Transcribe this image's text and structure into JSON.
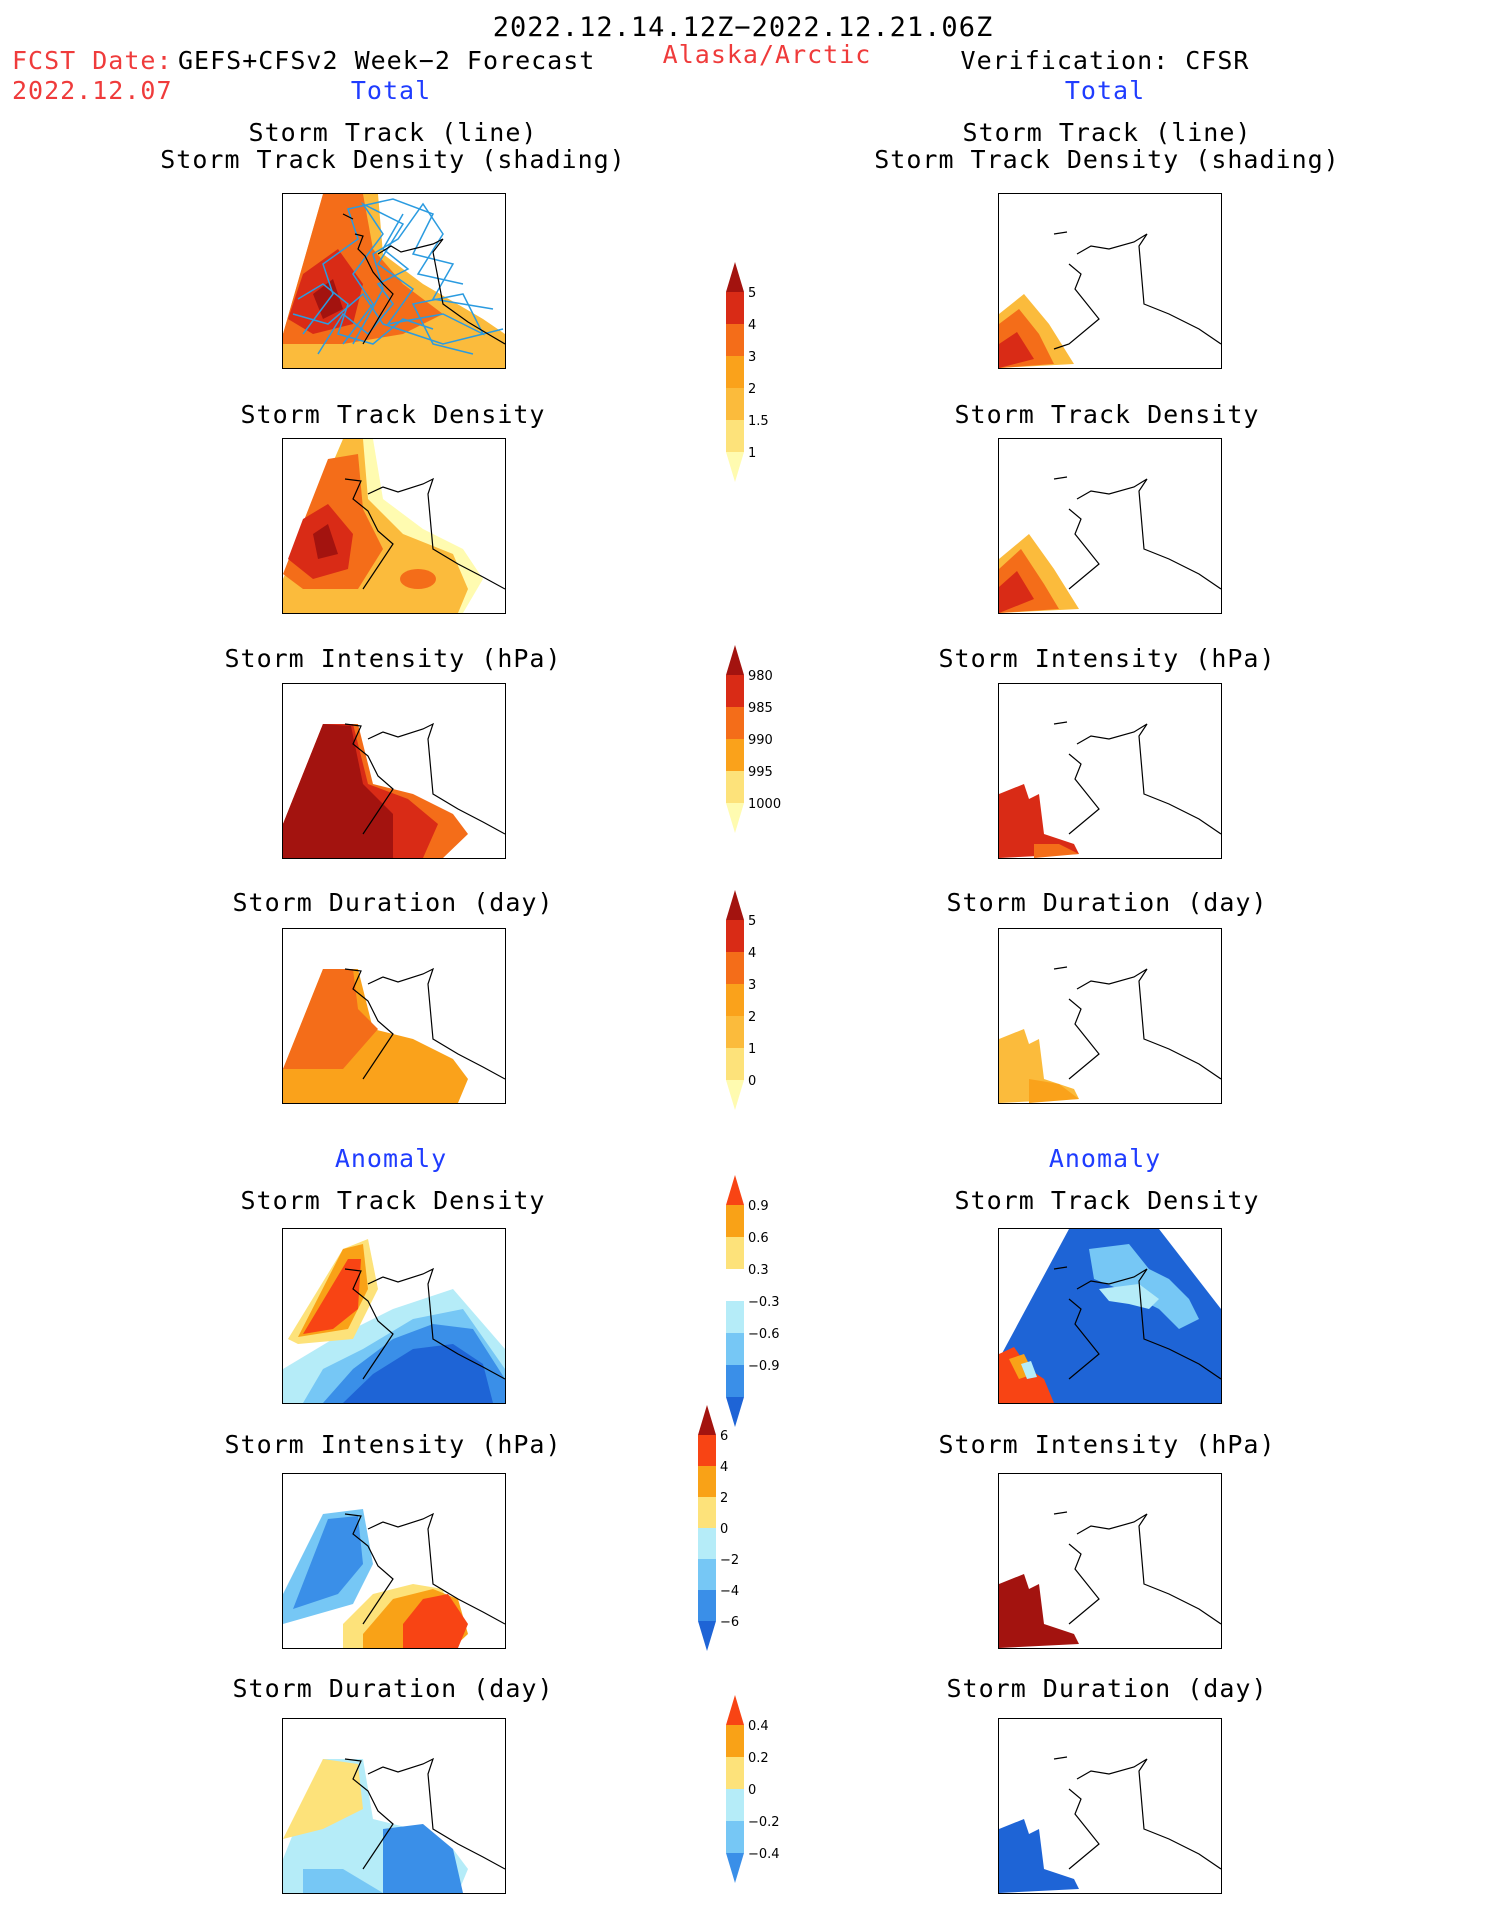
{
  "header": {
    "date_range": "2022.12.14.12Z−2022.12.21.06Z",
    "fcst_label": "FCST Date:",
    "model": "GEFS+CFSv2 Week−2 Forecast",
    "fcst_date": "2022.12.07",
    "region": "Alaska/Arctic",
    "verification": "Verification: CFSR"
  },
  "columns": {
    "left_total": "Total",
    "right_total": "Total",
    "left_anomaly": "Anomaly",
    "right_anomaly": "Anomaly"
  },
  "panels": {
    "titles": {
      "track_line": "Storm Track (line)",
      "track_shading": "Storm Track Density (shading)",
      "density": "Storm Track Density",
      "intensity": "Storm Intensity (hPa)",
      "duration": "Storm Duration (day)"
    }
  },
  "chart_data": [
    {
      "type": "heatmap",
      "title": "Storm Track (line) / Storm Track Density (shading)",
      "source": "GEFS+CFSv2",
      "field": "total",
      "features": [
        "storm track lines"
      ],
      "max_level": 5
    },
    {
      "type": "heatmap",
      "title": "Storm Track (line) / Storm Track Density (shading)",
      "source": "CFSR",
      "field": "total",
      "max_level": 5
    },
    {
      "type": "heatmap",
      "title": "Storm Track Density",
      "source": "GEFS+CFSv2",
      "field": "total",
      "max_level": 5
    },
    {
      "type": "heatmap",
      "title": "Storm Track Density",
      "source": "CFSR",
      "field": "total",
      "max_level": 5
    },
    {
      "type": "heatmap",
      "title": "Storm Intensity (hPa)",
      "source": "GEFS+CFSv2",
      "field": "total",
      "min_level": 980
    },
    {
      "type": "heatmap",
      "title": "Storm Intensity (hPa)",
      "source": "CFSR",
      "field": "total",
      "min_level": 980
    },
    {
      "type": "heatmap",
      "title": "Storm Duration (day)",
      "source": "GEFS+CFSv2",
      "field": "total",
      "max_level": 4
    },
    {
      "type": "heatmap",
      "title": "Storm Duration (day)",
      "source": "CFSR",
      "field": "total",
      "max_level": 2
    },
    {
      "type": "heatmap",
      "title": "Storm Track Density",
      "source": "GEFS+CFSv2",
      "field": "anomaly",
      "range": [
        -0.9,
        0.9
      ]
    },
    {
      "type": "heatmap",
      "title": "Storm Track Density",
      "source": "CFSR",
      "field": "anomaly",
      "range": [
        -0.9,
        0.9
      ]
    },
    {
      "type": "heatmap",
      "title": "Storm Intensity (hPa)",
      "source": "GEFS+CFSv2",
      "field": "anomaly",
      "range": [
        -6,
        6
      ]
    },
    {
      "type": "heatmap",
      "title": "Storm Intensity (hPa)",
      "source": "CFSR",
      "field": "anomaly",
      "range": [
        -6,
        6
      ]
    },
    {
      "type": "heatmap",
      "title": "Storm Duration (day)",
      "source": "GEFS+CFSv2",
      "field": "anomaly",
      "range": [
        -0.4,
        0.4
      ]
    },
    {
      "type": "heatmap",
      "title": "Storm Duration (day)",
      "source": "CFSR",
      "field": "anomaly",
      "range": [
        -0.4,
        0.4
      ]
    }
  ],
  "colorbars": {
    "density": {
      "labels": [
        "1",
        "1.5",
        "2",
        "3",
        "4",
        "5"
      ],
      "colors": [
        "#fffbb0",
        "#fde27a",
        "#fbbb3c",
        "#faa21b",
        "#f46d19",
        "#d92b16",
        "#a3130f"
      ]
    },
    "intensity": {
      "labels": [
        "980",
        "985",
        "990",
        "995",
        "1000"
      ],
      "colors": [
        "#a3130f",
        "#d92b16",
        "#f46d19",
        "#faa21b",
        "#fde27a",
        "#fffbb0"
      ]
    },
    "duration": {
      "labels": [
        "0",
        "1",
        "2",
        "3",
        "4",
        "5"
      ],
      "colors": [
        "#fffbb0",
        "#fde27a",
        "#fbbb3c",
        "#faa21b",
        "#f46d19",
        "#d92b16",
        "#a3130f"
      ]
    },
    "anom_density": {
      "labels": [
        "0.9",
        "0.6",
        "0.3",
        "−0.3",
        "−0.6",
        "−0.9"
      ],
      "colors": [
        "#f84414",
        "#f9a217",
        "#fde27a",
        "#ffffff",
        "#b5ecf8",
        "#76c7f5",
        "#3a8fe8",
        "#1e64d6"
      ]
    },
    "anom_intensity": {
      "labels": [
        "6",
        "4",
        "2",
        "0",
        "−2",
        "−4",
        "−6"
      ],
      "colors": [
        "#a3130f",
        "#f84414",
        "#f9a217",
        "#fde27a",
        "#b5ecf8",
        "#76c7f5",
        "#3a8fe8",
        "#1e64d6"
      ]
    },
    "anom_duration": {
      "labels": [
        "0.4",
        "0.2",
        "0",
        "−0.2",
        "−0.4"
      ],
      "colors": [
        "#f84414",
        "#f9a217",
        "#fde27a",
        "#b5ecf8",
        "#76c7f5",
        "#3a8fe8"
      ]
    }
  }
}
